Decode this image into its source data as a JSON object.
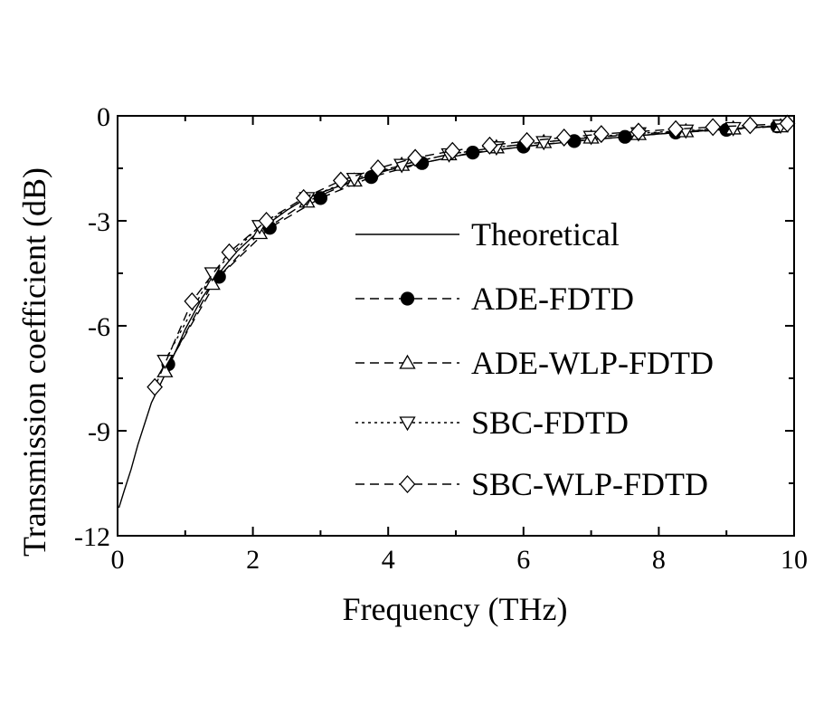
{
  "chart_data": {
    "type": "line",
    "title": "",
    "xlabel": "Frequency (THz)",
    "ylabel": "Transmission coefficient (dB)",
    "xlim": [
      0,
      10
    ],
    "ylim": [
      -12,
      0
    ],
    "xticks": [
      "0",
      "2",
      "4",
      "6",
      "8",
      "10"
    ],
    "yticks": [
      "0",
      "-3",
      "-6",
      "-9",
      "-12"
    ],
    "grid": false,
    "legend_position": "center-right",
    "series": [
      {
        "name": "Theoretical",
        "style": "solid",
        "marker": "none",
        "x": [
          0.02,
          0.1,
          0.2,
          0.3,
          0.4,
          0.5,
          0.6,
          0.75,
          1.0,
          1.25,
          1.5,
          1.75,
          2.0,
          2.25,
          2.5,
          2.75,
          3.0,
          3.5,
          4.0,
          4.5,
          5.0,
          5.5,
          6.0,
          6.5,
          7.0,
          7.5,
          8.0,
          8.5,
          9.0,
          9.5,
          9.9
        ],
        "y": [
          -11.2,
          -10.7,
          -10.1,
          -9.4,
          -8.8,
          -8.2,
          -7.8,
          -7.2,
          -6.1,
          -5.2,
          -4.5,
          -3.9,
          -3.45,
          -3.05,
          -2.7,
          -2.4,
          -2.2,
          -1.85,
          -1.55,
          -1.35,
          -1.15,
          -1.0,
          -0.88,
          -0.78,
          -0.68,
          -0.6,
          -0.52,
          -0.45,
          -0.38,
          -0.32,
          -0.28
        ]
      },
      {
        "name": "ADE-FDTD",
        "style": "dashed",
        "marker": "filled-circle",
        "x": [
          0.75,
          1.5,
          2.25,
          3.0,
          3.75,
          4.5,
          5.25,
          6.0,
          6.75,
          7.5,
          8.25,
          9.0,
          9.75
        ],
        "y": [
          -7.1,
          -4.6,
          -3.2,
          -2.35,
          -1.75,
          -1.35,
          -1.05,
          -0.88,
          -0.72,
          -0.6,
          -0.48,
          -0.4,
          -0.3
        ]
      },
      {
        "name": "ADE-WLP-FDTD",
        "style": "dashed",
        "marker": "open-triangle-up",
        "x": [
          0.7,
          1.4,
          2.1,
          2.8,
          3.5,
          4.2,
          4.9,
          5.6,
          6.3,
          7.0,
          7.7,
          8.4,
          9.1,
          9.8
        ],
        "y": [
          -7.3,
          -4.8,
          -3.35,
          -2.45,
          -1.85,
          -1.4,
          -1.1,
          -0.9,
          -0.75,
          -0.62,
          -0.52,
          -0.44,
          -0.36,
          -0.3
        ]
      },
      {
        "name": "SBC-FDTD",
        "style": "dotted",
        "marker": "open-triangle-down",
        "x": [
          0.7,
          1.4,
          2.1,
          2.8,
          3.5,
          4.2,
          4.9,
          5.6,
          6.3,
          7.0,
          7.7,
          8.4,
          9.1,
          9.8
        ],
        "y": [
          -7.0,
          -4.5,
          -3.15,
          -2.35,
          -1.8,
          -1.4,
          -1.1,
          -0.9,
          -0.75,
          -0.6,
          -0.5,
          -0.42,
          -0.35,
          -0.28
        ]
      },
      {
        "name": "SBC-WLP-FDTD",
        "style": "dashed",
        "marker": "open-diamond",
        "x": [
          0.55,
          1.1,
          1.65,
          2.2,
          2.75,
          3.3,
          3.85,
          4.4,
          4.95,
          5.5,
          6.05,
          6.6,
          7.15,
          7.7,
          8.25,
          8.8,
          9.35,
          9.9
        ],
        "y": [
          -7.75,
          -5.3,
          -3.9,
          -3.0,
          -2.35,
          -1.85,
          -1.5,
          -1.2,
          -1.0,
          -0.85,
          -0.72,
          -0.62,
          -0.52,
          -0.45,
          -0.38,
          -0.32,
          -0.27,
          -0.22
        ]
      }
    ]
  }
}
